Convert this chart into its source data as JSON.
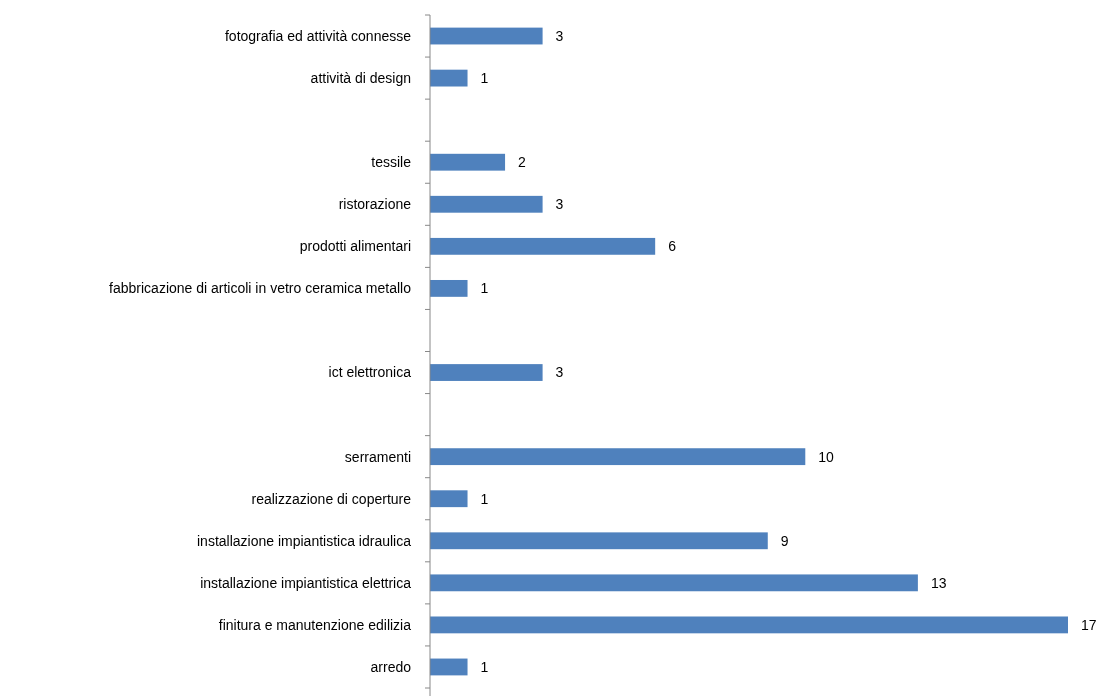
{
  "chart_data": {
    "type": "bar",
    "orientation": "horizontal",
    "data_labels": true,
    "color": "#4f81bd",
    "categories": [
      "fotografia ed attività connesse",
      "attività di design",
      null,
      "tessile",
      "ristorazione",
      "prodotti alimentari",
      "fabbricazione di articoli in vetro ceramica metallo",
      null,
      "ict elettronica",
      null,
      "serramenti",
      "realizzazione di coperture",
      "installazione impiantistica idraulica",
      "installazione impiantistica elettrica",
      "finitura e manutenzione edilizia",
      "arredo"
    ],
    "values": [
      3,
      1,
      null,
      2,
      3,
      6,
      1,
      null,
      3,
      null,
      10,
      1,
      9,
      13,
      17,
      1
    ]
  }
}
